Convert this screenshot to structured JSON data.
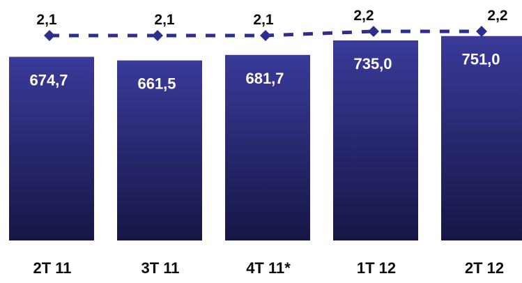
{
  "chart_data": {
    "type": "bar",
    "categories": [
      "2T 11",
      "3T 11",
      "4T 11*",
      "1T 12",
      "2T 12"
    ],
    "bar_labels": [
      "674,7",
      "661,5",
      "681,7",
      "735,0",
      "751,0"
    ],
    "line_labels": [
      "2,1",
      "2,1",
      "2,1",
      "2,2",
      "2,2"
    ],
    "series": [
      {
        "type": "bar",
        "values": [
          674.7,
          661.5,
          681.7,
          735.0,
          751.0
        ]
      },
      {
        "type": "line",
        "style": "dashed",
        "marker": "diamond",
        "values": [
          2.1,
          2.1,
          2.1,
          2.2,
          2.2
        ]
      }
    ],
    "colors": {
      "bar_top": "#3a3a9a",
      "bar_bottom": "#161646",
      "line": "#2e2e8c",
      "bar_label": "#ffffff",
      "text": "#0b0b0b"
    },
    "grid": false,
    "legend": "none"
  }
}
